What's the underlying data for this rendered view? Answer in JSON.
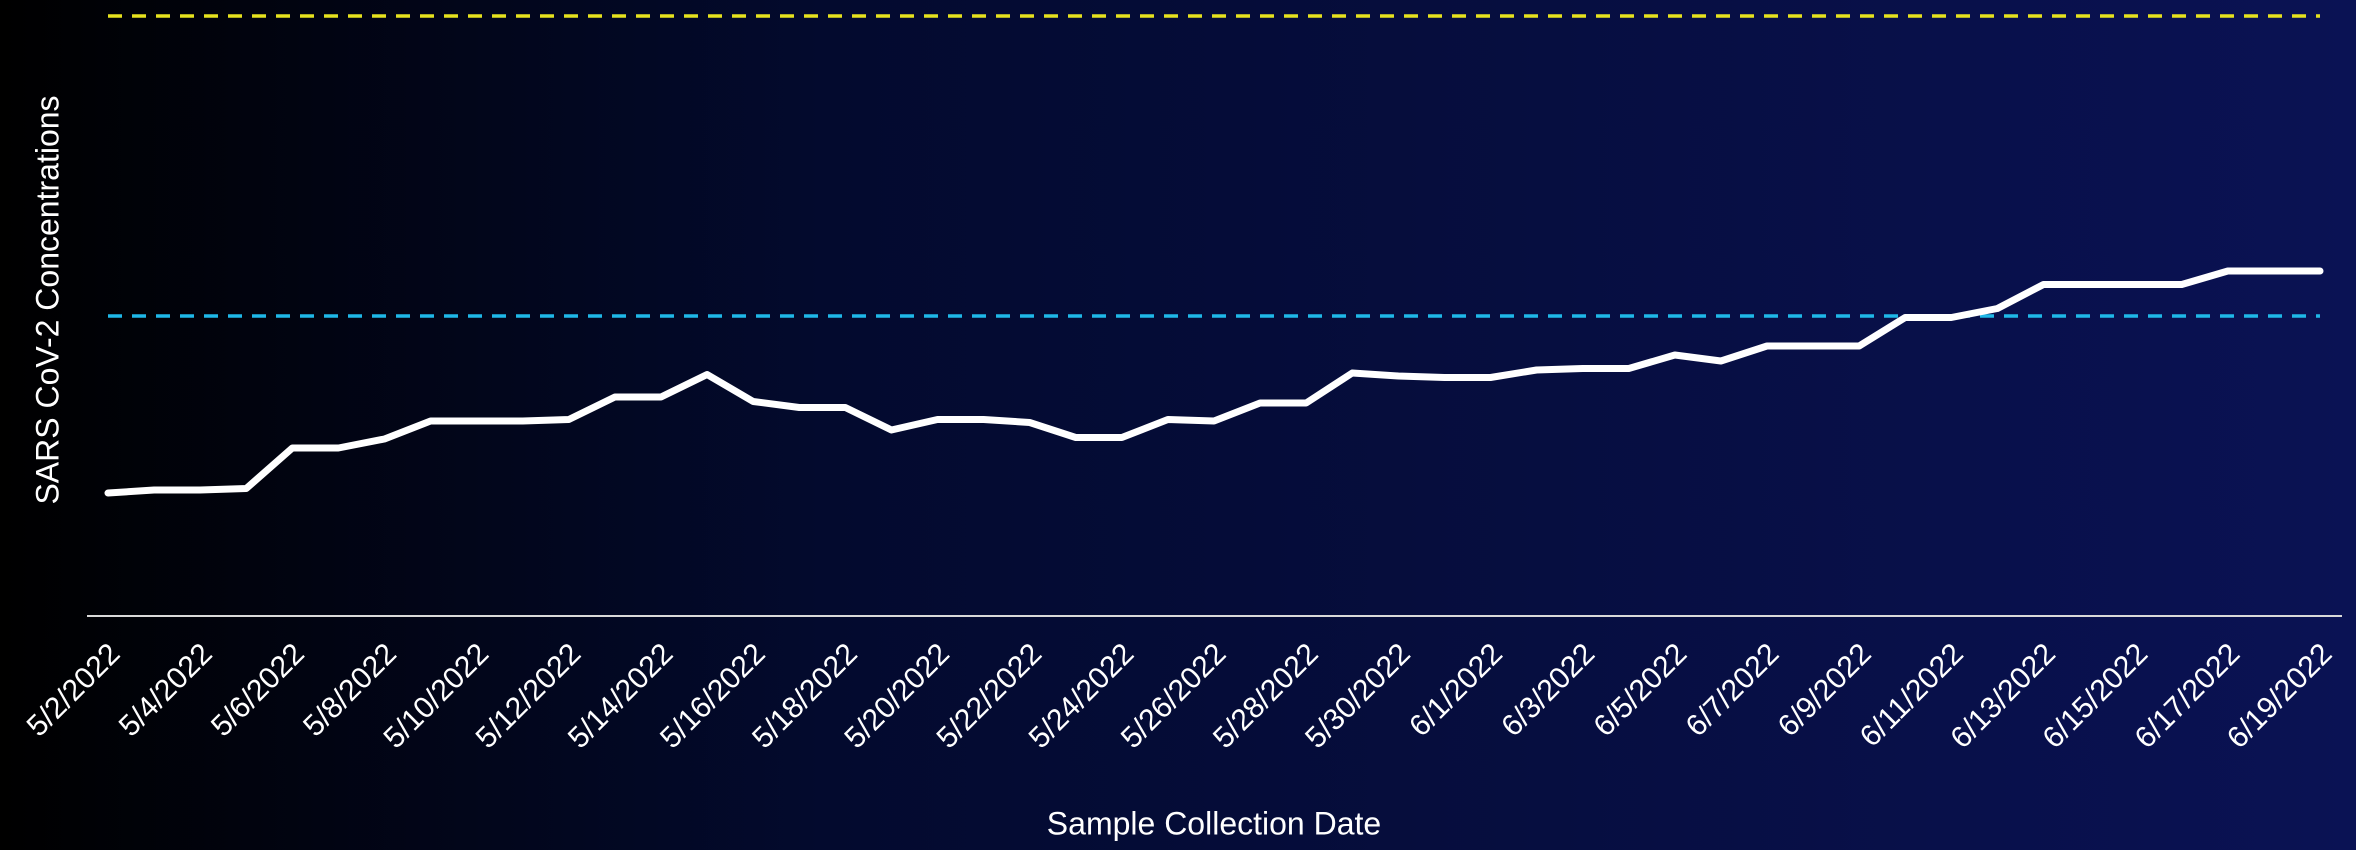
{
  "chart_data": {
    "type": "line",
    "xlabel": "Sample Collection Date",
    "ylabel": "SARS CoV-2 Concentrations",
    "categories": [
      "5/2/2022",
      null,
      "5/4/2022",
      null,
      "5/6/2022",
      null,
      "5/8/2022",
      null,
      "5/10/2022",
      null,
      "5/12/2022",
      null,
      "5/14/2022",
      null,
      "5/16/2022",
      null,
      "5/18/2022",
      null,
      "5/20/2022",
      null,
      "5/22/2022",
      null,
      "5/24/2022",
      null,
      "5/26/2022",
      null,
      "5/28/2022",
      null,
      "5/30/2022",
      null,
      "6/1/2022",
      null,
      "6/3/2022",
      null,
      "6/5/2022",
      null,
      "6/7/2022",
      null,
      "6/9/2022",
      null,
      "6/11/2022",
      null,
      "6/13/2022",
      null,
      "6/15/2022",
      null,
      "6/17/2022",
      null,
      "6/19/2022"
    ],
    "values": [
      20.5,
      21,
      21,
      21.25,
      28,
      28,
      29.5,
      32.5,
      32.5,
      32.5,
      32.75,
      36.5,
      36.5,
      40.25,
      35.75,
      34.75,
      34.75,
      31,
      32.75,
      32.75,
      32.25,
      29.75,
      29.75,
      32.75,
      32.5,
      35.5,
      35.5,
      40.5,
      40,
      39.75,
      39.75,
      41,
      41.25,
      41.25,
      43.5,
      42.5,
      45,
      45,
      45,
      49.75,
      49.75,
      51.25,
      55.25,
      55.25,
      55.25,
      55.25,
      57.5,
      57.5,
      57.5
    ],
    "color": "#ffffff",
    "ylim": [
      0,
      100
    ],
    "reference_lines": [
      {
        "value": 100,
        "color": "#e6e21e"
      },
      {
        "value": 50,
        "color": "#1fb8e8"
      }
    ]
  }
}
